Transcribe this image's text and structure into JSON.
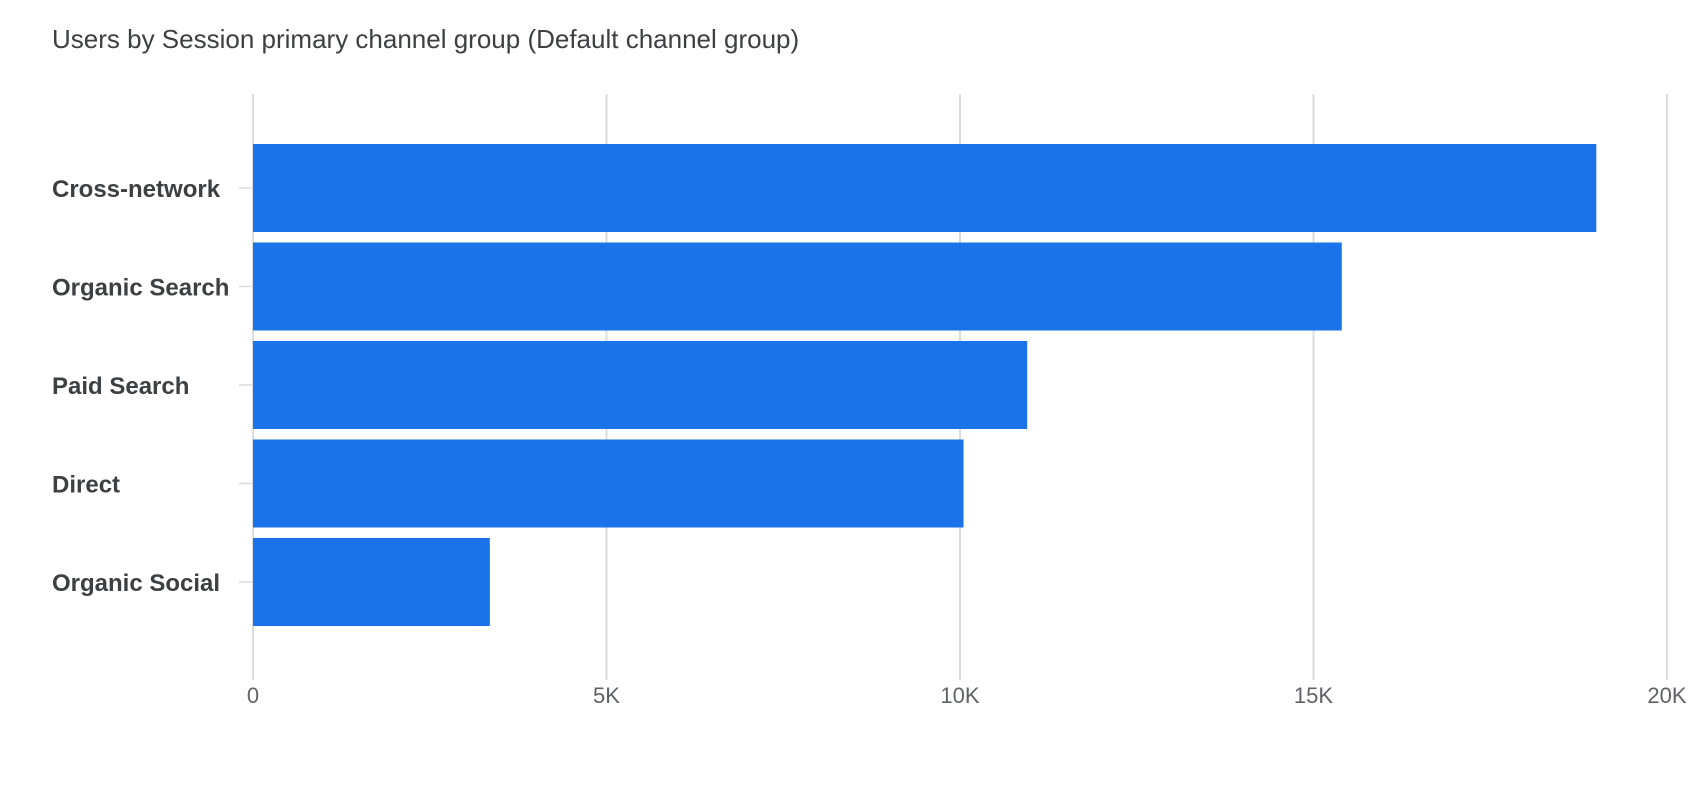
{
  "chart_data": {
    "type": "bar",
    "orientation": "horizontal",
    "title": "Users by Session primary channel group (Default channel group)",
    "categories": [
      "Cross-network",
      "Organic Search",
      "Paid Search",
      "Direct",
      "Organic Social"
    ],
    "values": [
      19000,
      15400,
      10950,
      10050,
      3350
    ],
    "xlim": [
      0,
      20000
    ],
    "x_ticks": [
      0,
      5000,
      10000,
      15000,
      20000
    ],
    "x_tick_labels": [
      "0",
      "5K",
      "10K",
      "15K",
      "20K"
    ],
    "grid": true,
    "legend": "none",
    "bar_color": "#1a73e8"
  }
}
